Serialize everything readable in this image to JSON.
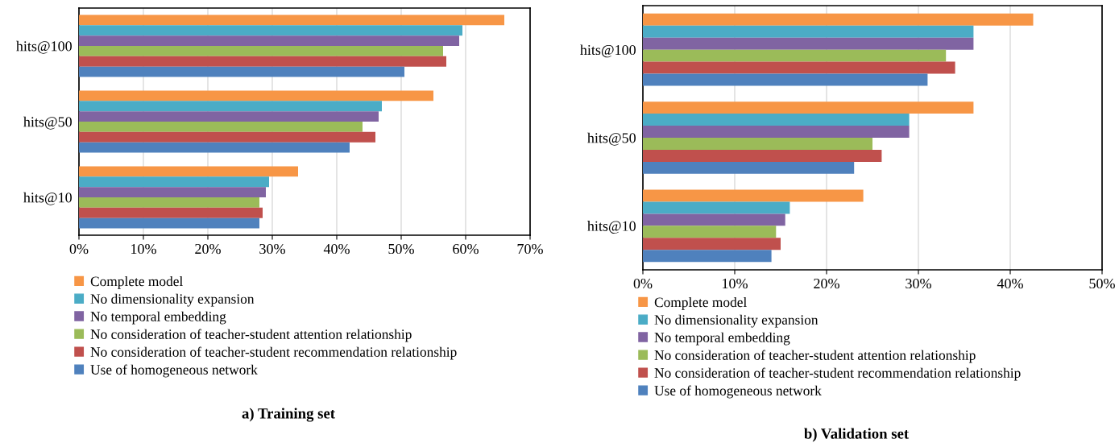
{
  "chart_data": [
    {
      "type": "bar",
      "orientation": "horizontal",
      "title": "a) Training set",
      "categories": [
        "hits@100",
        "hits@50",
        "hits@10"
      ],
      "series": [
        {
          "name": "Complete model",
          "color": "#f79646",
          "values": [
            66,
            55,
            34
          ]
        },
        {
          "name": "No dimensionality expansion",
          "color": "#4bacc6",
          "values": [
            59.5,
            47,
            29.5
          ]
        },
        {
          "name": "No temporal embedding",
          "color": "#8064a2",
          "values": [
            59,
            46.5,
            29
          ]
        },
        {
          "name": "No consideration of teacher-student attention relationship",
          "color": "#9bbb59",
          "values": [
            56.5,
            44,
            28
          ]
        },
        {
          "name": "No consideration of teacher-student recommendation relationship",
          "color": "#c0504d",
          "values": [
            57,
            46,
            28.5
          ]
        },
        {
          "name": "Use of homogeneous network",
          "color": "#4f81bd",
          "values": [
            50.5,
            42,
            28
          ]
        }
      ],
      "xlim": [
        0,
        70
      ],
      "xticks": [
        {
          "value": 0,
          "label": "0%"
        },
        {
          "value": 10,
          "label": "10%"
        },
        {
          "value": 20,
          "label": "20%"
        },
        {
          "value": 30,
          "label": "30%"
        },
        {
          "value": 40,
          "label": "40%"
        },
        {
          "value": 50,
          "label": "50%"
        },
        {
          "value": 60,
          "label": "60%"
        },
        {
          "value": 70,
          "label": "70%"
        }
      ],
      "grid": "x",
      "legend": "bottom"
    },
    {
      "type": "bar",
      "orientation": "horizontal",
      "title": "b) Validation set",
      "categories": [
        "hits@100",
        "hits@50",
        "hits@10"
      ],
      "series": [
        {
          "name": "Complete model",
          "color": "#f79646",
          "values": [
            42.5,
            36,
            24
          ]
        },
        {
          "name": "No dimensionality expansion",
          "color": "#4bacc6",
          "values": [
            36,
            29,
            16
          ]
        },
        {
          "name": "No temporal embedding",
          "color": "#8064a2",
          "values": [
            36,
            29,
            15.5
          ]
        },
        {
          "name": "No consideration of teacher-student attention relationship",
          "color": "#9bbb59",
          "values": [
            33,
            25,
            14.5
          ]
        },
        {
          "name": "No consideration of teacher-student recommendation relationship",
          "color": "#c0504d",
          "values": [
            34,
            26,
            15
          ]
        },
        {
          "name": "Use of homogeneous network",
          "color": "#4f81bd",
          "values": [
            31,
            23,
            14
          ]
        }
      ],
      "xlim": [
        0,
        50
      ],
      "xticks": [
        {
          "value": 0,
          "label": "0%"
        },
        {
          "value": 10,
          "label": "10%"
        },
        {
          "value": 20,
          "label": "20%"
        },
        {
          "value": 30,
          "label": "30%"
        },
        {
          "value": 40,
          "label": "40%"
        },
        {
          "value": 50,
          "label": "50%"
        }
      ],
      "grid": "x",
      "legend": "bottom"
    }
  ]
}
